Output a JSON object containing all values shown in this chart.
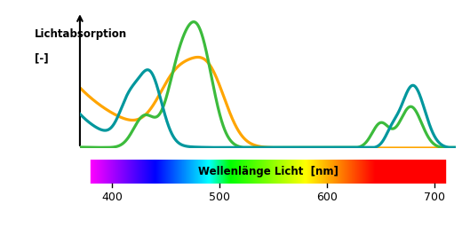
{
  "ylabel_line1": "Lichtabsorption",
  "ylabel_line2": "[-]",
  "xlabel_label": "Wellenlänge Licht  [nm]",
  "xlim": [
    370,
    720
  ],
  "ylim": [
    0,
    1.08
  ],
  "x_ticks": [
    400,
    500,
    600,
    700
  ],
  "background_color": "#ffffff",
  "teal_color": "#00979D",
  "green_color": "#3CBB3C",
  "orange_color": "#FFA500"
}
